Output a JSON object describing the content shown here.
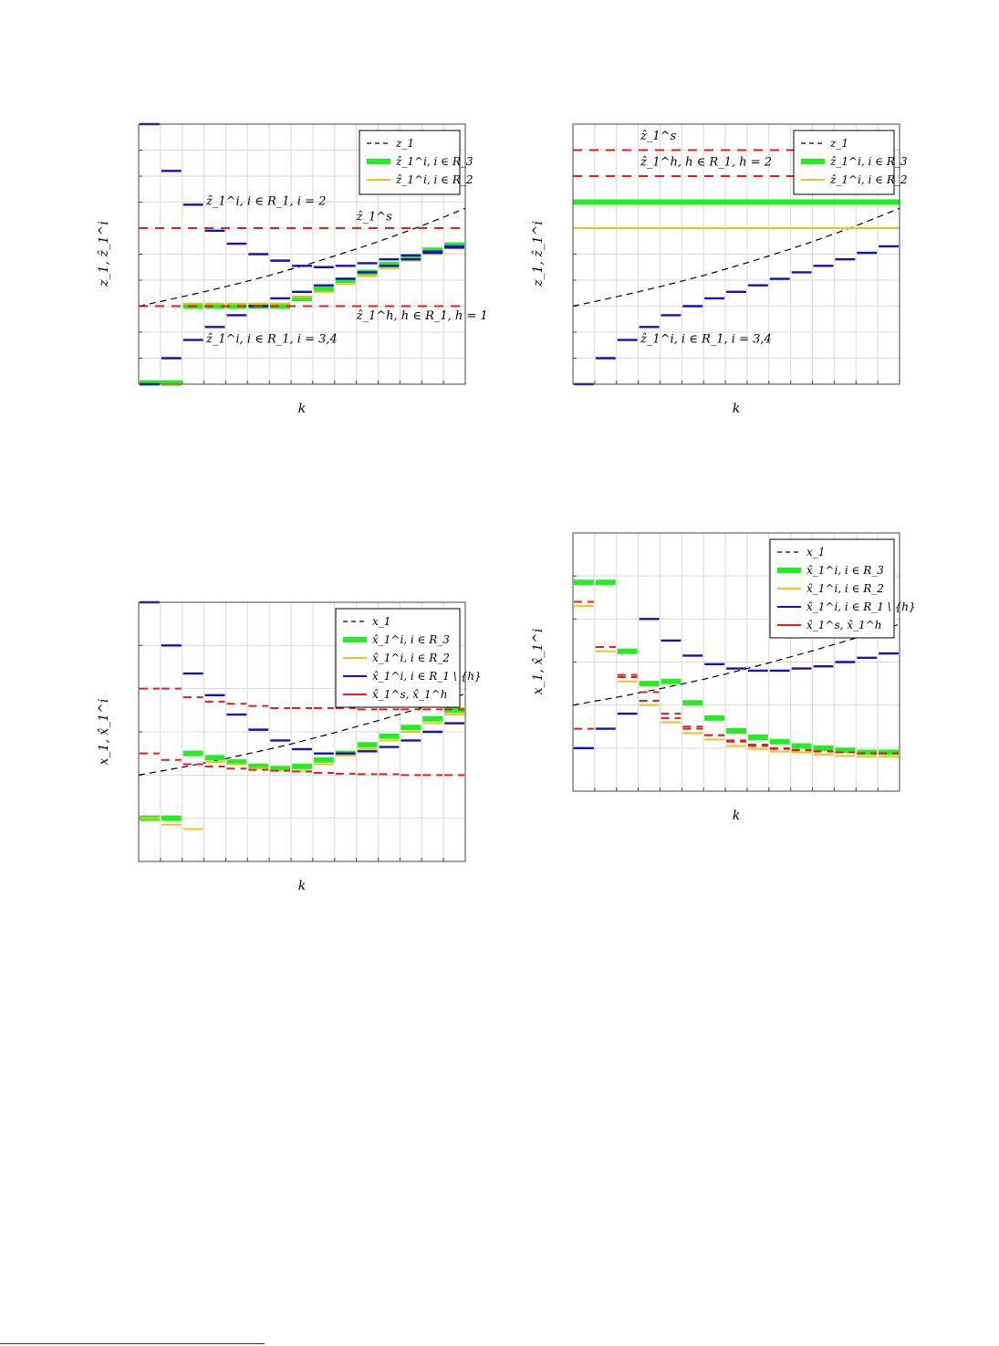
{
  "colors": {
    "green": "#22ee22",
    "yellow": "#f2c01e",
    "blue": "#1010c0",
    "red": "#e01e1e",
    "dashed": "#000000",
    "grid": "#d9d9d9"
  },
  "chart_data": [
    {
      "type": "line",
      "xlabel": "k",
      "ylabel": "z_1, ẑ_1^i",
      "xlim": [
        0,
        15
      ],
      "ylim": [
        0,
        10
      ],
      "grid": true,
      "legend_position": "top-right",
      "legend": [
        "z_1",
        "ẑ_1^i, i ∈ R_3",
        "ẑ_1^i, i ∈ R_2"
      ],
      "annotations": [
        {
          "text": "ẑ_1^i, i ∈ R_1, i = 2",
          "x": 3.1,
          "y": 6.9
        },
        {
          "text": "ẑ_1^s",
          "x": 10.0,
          "y": 6.3
        },
        {
          "text": "ẑ_1^h, h ∈ R_1, h = 1",
          "x": 10.0,
          "y": 2.5
        },
        {
          "text": "ẑ_1^i, i ∈ R_1, i = 3,4",
          "x": 3.1,
          "y": 1.6
        }
      ],
      "series": [
        {
          "name": "z_1",
          "style": "dashed",
          "color": "#000000",
          "x": [
            0,
            1,
            2,
            3,
            4,
            5,
            6,
            7,
            8,
            9,
            10,
            11,
            12,
            13,
            14,
            15
          ],
          "values": [
            3.0,
            3.18,
            3.36,
            3.55,
            3.75,
            3.96,
            4.18,
            4.42,
            4.67,
            4.93,
            5.2,
            5.48,
            5.78,
            6.09,
            6.42,
            6.76
          ]
        },
        {
          "name": "ẑ_1^i, i ∈ R_3",
          "style": "steps",
          "color": "#22ee22",
          "x": [
            0,
            1,
            2,
            3,
            4,
            5,
            6,
            7,
            8,
            9,
            10,
            11,
            12,
            13,
            14
          ],
          "values": [
            0.05,
            0.05,
            3.0,
            3.0,
            3.0,
            3.0,
            3.0,
            3.3,
            3.65,
            4.0,
            4.3,
            4.6,
            4.9,
            5.15,
            5.35
          ]
        },
        {
          "name": "ẑ_1^i, i ∈ R_2",
          "style": "steps",
          "color": "#f2c01e",
          "x": [
            0,
            1,
            2,
            3,
            4,
            5,
            6,
            7,
            8,
            9,
            10,
            11,
            12,
            13,
            14
          ],
          "values": [
            0.0,
            0.0,
            3.1,
            3.1,
            3.1,
            3.1,
            3.1,
            3.35,
            3.55,
            3.85,
            4.15,
            4.45,
            4.75,
            5.0,
            5.25
          ]
        },
        {
          "name": "ẑ_1^i, i ∈ R_1, i = 2",
          "style": "steps",
          "color": "#1010c0",
          "x": [
            0,
            1,
            2,
            3,
            4,
            5,
            6,
            7,
            8,
            9,
            10,
            11,
            12,
            13,
            14
          ],
          "values": [
            10.0,
            8.2,
            6.9,
            5.9,
            5.4,
            5.0,
            4.75,
            4.55,
            4.5,
            4.55,
            4.65,
            4.8,
            4.95,
            5.1,
            5.25
          ]
        },
        {
          "name": "ẑ_1^i, i ∈ R_1, i = 3,4",
          "style": "steps",
          "color": "#1010c0",
          "x": [
            0,
            1,
            2,
            3,
            4,
            5,
            6,
            7,
            8,
            9,
            10,
            11,
            12,
            13,
            14
          ],
          "values": [
            0.0,
            1.0,
            1.7,
            2.2,
            2.65,
            3.0,
            3.3,
            3.55,
            3.8,
            4.05,
            4.3,
            4.55,
            4.8,
            5.05,
            5.3
          ]
        },
        {
          "name": "ẑ_1^s",
          "style": "red-dashed",
          "color": "#e01e1e",
          "x": [
            0,
            15
          ],
          "values": [
            6.0,
            6.0
          ]
        },
        {
          "name": "ẑ_1^h",
          "style": "red-dashed",
          "color": "#e01e1e",
          "x": [
            0,
            15
          ],
          "values": [
            3.0,
            3.0
          ]
        }
      ]
    },
    {
      "type": "line",
      "xlabel": "k",
      "ylabel": "z_1, ẑ_1^i",
      "xlim": [
        0,
        15
      ],
      "ylim": [
        0,
        10
      ],
      "grid": true,
      "legend_position": "top-right",
      "legend": [
        "z_1",
        "ẑ_1^i, i ∈ R_3",
        "ẑ_1^i, i ∈ R_2"
      ],
      "annotations": [
        {
          "text": "ẑ_1^s",
          "x": 3.1,
          "y": 9.4
        },
        {
          "text": "ẑ_1^h, h ∈ R_1, h = 2",
          "x": 3.1,
          "y": 8.4
        },
        {
          "text": "ẑ_1^i, i ∈ R_1, i = 3,4",
          "x": 3.1,
          "y": 1.6
        }
      ],
      "series": [
        {
          "name": "z_1",
          "style": "dashed",
          "color": "#000000",
          "x": [
            0,
            1,
            2,
            3,
            4,
            5,
            6,
            7,
            8,
            9,
            10,
            11,
            12,
            13,
            14,
            15
          ],
          "values": [
            3.0,
            3.18,
            3.36,
            3.55,
            3.75,
            3.96,
            4.18,
            4.42,
            4.67,
            4.93,
            5.2,
            5.48,
            5.78,
            6.09,
            6.42,
            6.76
          ]
        },
        {
          "name": "ẑ_1^i, i ∈ R_3",
          "style": "steps",
          "color": "#22ee22",
          "x": [
            0,
            15
          ],
          "values": [
            7.0,
            7.0
          ]
        },
        {
          "name": "ẑ_1^i, i ∈ R_2",
          "style": "steps",
          "color": "#f2c01e",
          "x": [
            0,
            15
          ],
          "values": [
            6.0,
            6.0
          ]
        },
        {
          "name": "ẑ_1^i, i ∈ R_1, i = 3,4",
          "style": "steps",
          "color": "#1010c0",
          "x": [
            0,
            1,
            2,
            3,
            4,
            5,
            6,
            7,
            8,
            9,
            10,
            11,
            12,
            13,
            14
          ],
          "values": [
            0.0,
            1.0,
            1.7,
            2.2,
            2.65,
            3.0,
            3.3,
            3.55,
            3.8,
            4.05,
            4.3,
            4.55,
            4.8,
            5.05,
            5.3
          ]
        },
        {
          "name": "ẑ_1^s",
          "style": "red-dashed",
          "color": "#e01e1e",
          "x": [
            0,
            15
          ],
          "values": [
            9.0,
            9.0
          ]
        },
        {
          "name": "ẑ_1^h",
          "style": "red-dashed",
          "color": "#e01e1e",
          "x": [
            0,
            15
          ],
          "values": [
            8.0,
            8.0
          ]
        }
      ]
    },
    {
      "type": "line",
      "xlabel": "k",
      "ylabel": "x_1, x̂_1^i",
      "xlim": [
        0,
        15
      ],
      "ylim": [
        0,
        6
      ],
      "grid": true,
      "legend_position": "top-right",
      "legend": [
        "x_1",
        "x̂_1^i, i ∈ R_3",
        "x̂_1^i, i ∈ R_2",
        "x̂_1^i, i ∈ R_1 \\ {h}",
        "x̂_1^s, x̂_1^h"
      ],
      "series": [
        {
          "name": "x_1",
          "style": "dashed",
          "color": "#000000",
          "x": [
            0,
            1,
            2,
            3,
            4,
            5,
            6,
            7,
            8,
            9,
            10,
            11,
            12,
            13,
            14,
            15
          ],
          "values": [
            2.0,
            2.09,
            2.18,
            2.28,
            2.38,
            2.49,
            2.6,
            2.72,
            2.85,
            2.98,
            3.12,
            3.26,
            3.41,
            3.56,
            3.72,
            3.88
          ]
        },
        {
          "name": "x̂_1^i, i ∈ R_3",
          "style": "steps",
          "color": "#22ee22",
          "x": [
            0,
            1,
            2,
            3,
            4,
            5,
            6,
            7,
            8,
            9,
            10,
            11,
            12,
            13,
            14
          ],
          "values": [
            1.0,
            1.0,
            2.5,
            2.4,
            2.3,
            2.2,
            2.15,
            2.2,
            2.35,
            2.5,
            2.7,
            2.9,
            3.1,
            3.3,
            3.5
          ]
        },
        {
          "name": "x̂_1^i, i ∈ R_2",
          "style": "steps",
          "color": "#f2c01e",
          "x": [
            0,
            1,
            2,
            3,
            4,
            5,
            6,
            7,
            8,
            9,
            10,
            11,
            12,
            13,
            14
          ],
          "values": [
            1.0,
            0.85,
            0.75,
            2.3,
            2.25,
            2.15,
            2.1,
            2.1,
            2.25,
            2.45,
            2.6,
            2.8,
            3.0,
            3.2,
            3.4
          ]
        },
        {
          "name": "x̂_1^i, i ∈ R_1 \\ {h}",
          "style": "steps",
          "color": "#1010c0",
          "x": [
            0,
            1,
            2,
            3,
            4,
            5,
            6,
            7,
            8,
            9,
            10,
            11,
            12,
            13,
            14
          ],
          "values": [
            6.0,
            5.0,
            4.35,
            3.85,
            3.4,
            3.05,
            2.8,
            2.6,
            2.5,
            2.5,
            2.55,
            2.65,
            2.8,
            3.0,
            3.2
          ]
        },
        {
          "name": "x̂_1^s",
          "style": "red-dashed",
          "color": "#e01e1e",
          "x": [
            0,
            1,
            2,
            3,
            4,
            5,
            6,
            7,
            8,
            9,
            10,
            11,
            12,
            13,
            14
          ],
          "values": [
            4.0,
            4.0,
            3.8,
            3.7,
            3.65,
            3.6,
            3.55,
            3.55,
            3.55,
            3.55,
            3.52,
            3.52,
            3.52,
            3.52,
            3.52
          ]
        },
        {
          "name": "x̂_1^h",
          "style": "red-dashed",
          "color": "#e01e1e",
          "x": [
            0,
            1,
            2,
            3,
            4,
            5,
            6,
            7,
            8,
            9,
            10,
            11,
            12,
            13,
            14
          ],
          "values": [
            2.5,
            2.35,
            2.25,
            2.2,
            2.15,
            2.12,
            2.1,
            2.08,
            2.05,
            2.03,
            2.02,
            2.02,
            2.0,
            2.0,
            2.0
          ]
        }
      ]
    },
    {
      "type": "line",
      "xlabel": "k",
      "ylabel": "x_1, x̂_1^i",
      "xlim": [
        0,
        15
      ],
      "ylim": [
        0,
        6
      ],
      "grid": true,
      "legend_position": "top-right",
      "legend": [
        "x_1",
        "x̂_1^i, i ∈ R_3",
        "x̂_1^i, i ∈ R_2",
        "x̂_1^i, i ∈ R_1 \\ {h}",
        "x̂_1^s, x̂_1^h"
      ],
      "series": [
        {
          "name": "x_1",
          "style": "dashed",
          "color": "#000000",
          "x": [
            0,
            1,
            2,
            3,
            4,
            5,
            6,
            7,
            8,
            9,
            10,
            11,
            12,
            13,
            14,
            15
          ],
          "values": [
            2.0,
            2.09,
            2.18,
            2.28,
            2.38,
            2.49,
            2.6,
            2.72,
            2.85,
            2.98,
            3.12,
            3.26,
            3.41,
            3.56,
            3.72,
            3.88
          ]
        },
        {
          "name": "x̂_1^i, i ∈ R_3",
          "style": "steps",
          "color": "#22ee22",
          "x": [
            0,
            1,
            2,
            3,
            4,
            5,
            6,
            7,
            8,
            9,
            10,
            11,
            12,
            13,
            14
          ],
          "values": [
            4.85,
            4.85,
            3.25,
            2.5,
            2.55,
            2.05,
            1.7,
            1.4,
            1.25,
            1.15,
            1.05,
            1.0,
            0.95,
            0.9,
            0.9
          ]
        },
        {
          "name": "x̂_1^i, i ∈ R_2",
          "style": "steps",
          "color": "#f2c01e",
          "x": [
            0,
            1,
            2,
            3,
            4,
            5,
            6,
            7,
            8,
            9,
            10,
            11,
            12,
            13,
            14
          ],
          "values": [
            4.3,
            3.25,
            2.55,
            2.0,
            1.6,
            1.35,
            1.2,
            1.05,
            0.98,
            0.92,
            0.9,
            0.85,
            0.82,
            0.8,
            0.8
          ]
        },
        {
          "name": "x̂_1^i, i ∈ R_1 \\ {h}",
          "style": "steps",
          "color": "#1010c0",
          "x": [
            0,
            1,
            2,
            3,
            4,
            5,
            6,
            7,
            8,
            9,
            10,
            11,
            12,
            13,
            14
          ],
          "values": [
            1.0,
            1.45,
            1.8,
            4.0,
            3.5,
            3.15,
            2.95,
            2.85,
            2.8,
            2.8,
            2.85,
            2.9,
            3.0,
            3.1,
            3.2
          ]
        },
        {
          "name": "x̂_1^s",
          "style": "red-dashed",
          "color": "#e01e1e",
          "x": [
            0,
            1,
            2,
            3,
            4,
            5,
            6,
            7,
            8,
            9,
            10,
            11,
            12,
            13,
            14
          ],
          "values": [
            4.4,
            3.35,
            2.65,
            2.1,
            1.7,
            1.45,
            1.3,
            1.15,
            1.05,
            0.98,
            0.95,
            0.92,
            0.9,
            0.88,
            0.88
          ]
        },
        {
          "name": "x̂_1^h",
          "style": "red-dashed",
          "color": "#e01e1e",
          "x": [
            0,
            1,
            2,
            3,
            4,
            5,
            6,
            7,
            8,
            9,
            10,
            11,
            12,
            13,
            14
          ],
          "values": [
            1.45,
            3.35,
            2.7,
            2.3,
            1.8,
            1.5,
            1.3,
            1.18,
            1.08,
            1.0,
            0.96,
            0.93,
            0.9,
            0.88,
            0.88
          ]
        }
      ]
    }
  ]
}
